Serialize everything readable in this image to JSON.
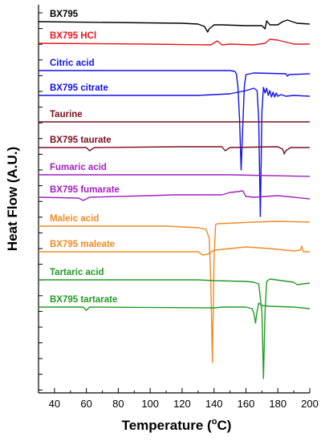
{
  "chart_data": {
    "type": "line",
    "title": "",
    "xlabel": "Temperature (",
    "xlabel_super": "o",
    "xlabel_unit": "C)",
    "ylabel": "Heat Flow (A.U.)",
    "xlim": [
      30,
      200
    ],
    "xticks": [
      "40",
      "60",
      "80",
      "100",
      "120",
      "140",
      "160",
      "180",
      "200"
    ],
    "grid": false,
    "series": [
      {
        "name": "BX795",
        "color": "#000000",
        "baseline": 21,
        "points": [
          [
            30,
            0
          ],
          [
            120,
            2
          ],
          [
            130,
            3
          ],
          [
            134,
            6
          ],
          [
            136,
            13
          ],
          [
            137,
            9
          ],
          [
            140,
            4
          ],
          [
            145,
            4
          ],
          [
            160,
            5
          ],
          [
            170,
            5
          ],
          [
            172,
            9
          ],
          [
            173,
            -1
          ],
          [
            175,
            4
          ],
          [
            180,
            4
          ],
          [
            183,
            0
          ],
          [
            186,
            -2
          ],
          [
            192,
            2
          ],
          [
            200,
            3
          ]
        ]
      },
      {
        "name": "BX795 HCl",
        "color": "#e8161b",
        "baseline": 48,
        "points": [
          [
            30,
            0
          ],
          [
            100,
            1
          ],
          [
            138,
            2
          ],
          [
            142,
            -3
          ],
          [
            145,
            2
          ],
          [
            150,
            1
          ],
          [
            165,
            2
          ],
          [
            172,
            0
          ],
          [
            175,
            -5
          ],
          [
            180,
            -4
          ],
          [
            190,
            1
          ],
          [
            200,
            1
          ]
        ]
      },
      {
        "name": "Citric acid",
        "color": "#1010e8",
        "baseline": 82,
        "points": [
          [
            30,
            0
          ],
          [
            120,
            0
          ],
          [
            150,
            0
          ],
          [
            153,
            1
          ],
          [
            154,
            4
          ],
          [
            155,
            20
          ],
          [
            156,
            60
          ],
          [
            157,
            124
          ],
          [
            158,
            70
          ],
          [
            159,
            20
          ],
          [
            160,
            5
          ],
          [
            165,
            3
          ],
          [
            185,
            4
          ],
          [
            186,
            7
          ],
          [
            187,
            5
          ],
          [
            200,
            4
          ]
        ]
      },
      {
        "name": "BX795 citrate",
        "color": "#1010e8",
        "baseline": 113,
        "points": [
          [
            30,
            0
          ],
          [
            130,
            0
          ],
          [
            150,
            -2
          ],
          [
            160,
            -6
          ],
          [
            165,
            -9
          ],
          [
            167,
            -6
          ],
          [
            168,
            30
          ],
          [
            169,
            151
          ],
          [
            170,
            20
          ],
          [
            171,
            -10
          ],
          [
            172,
            -3
          ],
          [
            173,
            -9
          ],
          [
            174,
            0
          ],
          [
            175,
            -6
          ],
          [
            176,
            2
          ],
          [
            177,
            -4
          ],
          [
            178,
            2
          ],
          [
            179,
            -3
          ],
          [
            180,
            1
          ],
          [
            182,
            -1
          ],
          [
            185,
            1
          ],
          [
            190,
            0
          ],
          [
            200,
            1
          ]
        ]
      },
      {
        "name": "Taurine",
        "color": "#7a1020",
        "baseline": 146,
        "points": [
          [
            30,
            0
          ],
          [
            200,
            0
          ]
        ]
      },
      {
        "name": "BX795 taurate",
        "color": "#7a1020",
        "baseline": 178,
        "points": [
          [
            30,
            0
          ],
          [
            60,
            0
          ],
          [
            62,
            4
          ],
          [
            65,
            0
          ],
          [
            120,
            -1
          ],
          [
            145,
            -1
          ],
          [
            147,
            4
          ],
          [
            150,
            0
          ],
          [
            180,
            -1
          ],
          [
            183,
            2
          ],
          [
            184,
            8
          ],
          [
            185,
            4
          ],
          [
            188,
            0
          ],
          [
            200,
            0
          ]
        ]
      },
      {
        "name": "Fumaric acid",
        "color": "#a020c0",
        "baseline": 212,
        "points": [
          [
            30,
            0
          ],
          [
            100,
            0
          ],
          [
            150,
            0
          ],
          [
            200,
            2
          ]
        ]
      },
      {
        "name": "BX795 fumarate",
        "color": "#a020c0",
        "baseline": 240,
        "points": [
          [
            30,
            0
          ],
          [
            55,
            1
          ],
          [
            58,
            4
          ],
          [
            62,
            0
          ],
          [
            100,
            -2
          ],
          [
            115,
            -3
          ],
          [
            125,
            -3
          ],
          [
            145,
            -3
          ],
          [
            150,
            -6
          ],
          [
            155,
            -7
          ],
          [
            158,
            -8
          ],
          [
            160,
            -1
          ],
          [
            165,
            0
          ],
          [
            180,
            -2
          ],
          [
            200,
            2
          ]
        ]
      },
      {
        "name": "Maleic acid",
        "color": "#f08a24",
        "baseline": 276,
        "points": [
          [
            30,
            0
          ],
          [
            110,
            0
          ],
          [
            130,
            2
          ],
          [
            135,
            4
          ],
          [
            137,
            15
          ],
          [
            138,
            70
          ],
          [
            139,
            170
          ],
          [
            140,
            40
          ],
          [
            141,
            -2
          ],
          [
            142,
            -3
          ],
          [
            165,
            -5
          ],
          [
            180,
            -6
          ],
          [
            200,
            -5
          ]
        ]
      },
      {
        "name": "BX795 maleate",
        "color": "#f08a24",
        "baseline": 308,
        "points": [
          [
            30,
            0
          ],
          [
            130,
            0
          ],
          [
            133,
            4
          ],
          [
            136,
            3
          ],
          [
            140,
            -2
          ],
          [
            150,
            -4
          ],
          [
            160,
            -6
          ],
          [
            175,
            -4
          ],
          [
            190,
            -1
          ],
          [
            194,
            -2
          ],
          [
            195,
            -7
          ],
          [
            196,
            0
          ],
          [
            200,
            0
          ]
        ]
      },
      {
        "name": "Tartaric acid",
        "color": "#249a24",
        "baseline": 343,
        "points": [
          [
            30,
            0
          ],
          [
            130,
            0
          ],
          [
            140,
            1
          ],
          [
            160,
            2
          ],
          [
            165,
            3
          ],
          [
            168,
            5
          ],
          [
            170,
            40
          ],
          [
            171,
            123
          ],
          [
            172,
            40
          ],
          [
            173,
            2
          ],
          [
            175,
            -1
          ],
          [
            190,
            3
          ],
          [
            192,
            6
          ],
          [
            200,
            4
          ]
        ]
      },
      {
        "name": "BX795 tartarate",
        "color": "#249a24",
        "baseline": 377,
        "points": [
          [
            30,
            0
          ],
          [
            58,
            0
          ],
          [
            60,
            4
          ],
          [
            62,
            0
          ],
          [
            140,
            1
          ],
          [
            145,
            0
          ],
          [
            160,
            0
          ],
          [
            164,
            2
          ],
          [
            165,
            8
          ],
          [
            166,
            20
          ],
          [
            167,
            5
          ],
          [
            168,
            -5
          ],
          [
            170,
            -2
          ],
          [
            175,
            -1
          ],
          [
            190,
            0
          ],
          [
            200,
            2
          ]
        ]
      }
    ]
  }
}
